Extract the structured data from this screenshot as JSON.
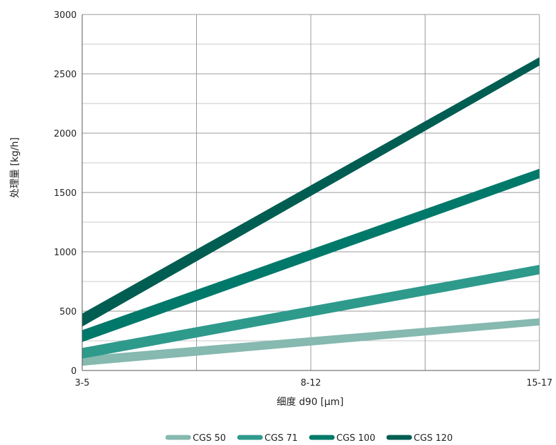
{
  "chart_data": {
    "type": "area",
    "title": "",
    "xlabel": "细度 d90 [µm]",
    "ylabel": "处理量 [kg/h]",
    "ylim": [
      0,
      3000
    ],
    "yticks": [
      0,
      500,
      1000,
      1500,
      2000,
      2500,
      3000
    ],
    "xlim": [
      0,
      1
    ],
    "xticks": [
      {
        "label": "3-5",
        "x": 0
      },
      {
        "label": "8-12",
        "x": 0.5
      },
      {
        "label": "15-17",
        "x": 1
      }
    ],
    "grid": true,
    "legend_position": "bottom",
    "series": [
      {
        "name": "CGS 50",
        "color": "#86b9b0",
        "lower": [
          {
            "x": 0,
            "y": 40
          },
          {
            "x": 1,
            "y": 380
          }
        ],
        "upper": [
          {
            "x": 0,
            "y": 120
          },
          {
            "x": 1,
            "y": 440
          }
        ]
      },
      {
        "name": "CGS 71",
        "color": "#2e9a8c",
        "lower": [
          {
            "x": 0,
            "y": 100
          },
          {
            "x": 1,
            "y": 810
          }
        ],
        "upper": [
          {
            "x": 0,
            "y": 190
          },
          {
            "x": 1,
            "y": 890
          }
        ]
      },
      {
        "name": "CGS 100",
        "color": "#00796a",
        "lower": [
          {
            "x": 0,
            "y": 240
          },
          {
            "x": 1,
            "y": 1620
          }
        ],
        "upper": [
          {
            "x": 0,
            "y": 340
          },
          {
            "x": 1,
            "y": 1700
          }
        ]
      },
      {
        "name": "CGS 120",
        "color": "#005d52",
        "lower": [
          {
            "x": 0,
            "y": 370
          },
          {
            "x": 1,
            "y": 2570
          }
        ],
        "upper": [
          {
            "x": 0,
            "y": 480
          },
          {
            "x": 1,
            "y": 2640
          }
        ]
      }
    ]
  }
}
